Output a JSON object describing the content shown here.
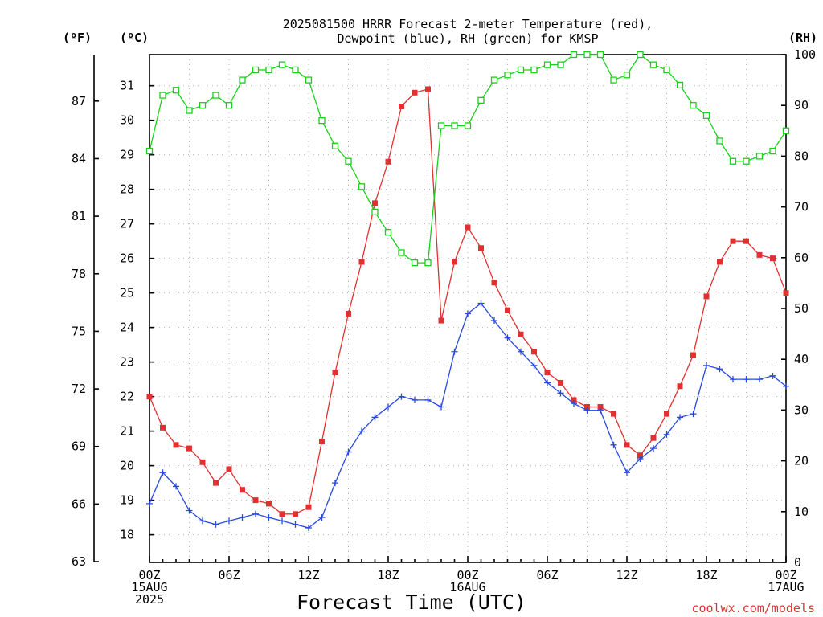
{
  "chart_data": {
    "type": "line",
    "title_lines": [
      "2025081500 HRRR Forecast 2-meter Temperature (red),",
      "Dewpoint (blue), RH (green) for KMSP"
    ],
    "xlabel": "Forecast Time (UTC)",
    "credit": "coolwx.com/models",
    "units": {
      "left_f": "(ºF)",
      "left_c": "(ºC)",
      "right": "(RH)"
    },
    "x_ticks": [
      {
        "hour": 0,
        "lines": [
          "00Z",
          "15AUG",
          "2025"
        ]
      },
      {
        "hour": 6,
        "lines": [
          "06Z"
        ]
      },
      {
        "hour": 12,
        "lines": [
          "12Z"
        ]
      },
      {
        "hour": 18,
        "lines": [
          "18Z"
        ]
      },
      {
        "hour": 24,
        "lines": [
          "00Z",
          "16AUG"
        ]
      },
      {
        "hour": 30,
        "lines": [
          "06Z"
        ]
      },
      {
        "hour": 36,
        "lines": [
          "12Z"
        ]
      },
      {
        "hour": 42,
        "lines": [
          "18Z"
        ]
      },
      {
        "hour": 48,
        "lines": [
          "00Z",
          "17AUG"
        ]
      }
    ],
    "xlim": [
      0,
      48
    ],
    "ylim_c": [
      17.2,
      31.9
    ],
    "ylim_rh": [
      0,
      100
    ],
    "y_ticks_c": [
      "18",
      "19",
      "20",
      "21",
      "22",
      "23",
      "24",
      "25",
      "26",
      "27",
      "28",
      "29",
      "30",
      "31"
    ],
    "y_ticks_f": [
      "63",
      "66",
      "69",
      "72",
      "75",
      "78",
      "81",
      "84",
      "87"
    ],
    "y_ticks_rh": [
      "0",
      "10",
      "20",
      "30",
      "40",
      "50",
      "60",
      "70",
      "80",
      "90",
      "100"
    ],
    "series": [
      {
        "name": "Temperature",
        "color": "#e03030",
        "marker": "filled-square",
        "scale": "celsius",
        "values": [
          22.0,
          21.1,
          20.6,
          20.5,
          20.1,
          19.5,
          19.9,
          19.3,
          19.0,
          18.9,
          18.6,
          18.6,
          18.8,
          20.7,
          22.7,
          24.4,
          25.9,
          27.6,
          28.8,
          30.4,
          30.8,
          30.9,
          24.2,
          25.9,
          26.9,
          26.3,
          25.3,
          24.5,
          23.8,
          23.3,
          22.7,
          22.4,
          21.9,
          21.7,
          21.7,
          21.5,
          20.6,
          20.3,
          20.8,
          21.5,
          22.3,
          23.2,
          24.9,
          25.9,
          26.5,
          26.5,
          26.1,
          26.0,
          25.0
        ]
      },
      {
        "name": "Dewpoint",
        "color": "#2848e0",
        "marker": "plus",
        "scale": "celsius",
        "values": [
          18.9,
          19.8,
          19.4,
          18.7,
          18.4,
          18.3,
          18.4,
          18.5,
          18.6,
          18.5,
          18.4,
          18.3,
          18.2,
          18.5,
          19.5,
          20.4,
          21.0,
          21.4,
          21.7,
          22.0,
          21.9,
          21.9,
          21.7,
          23.3,
          24.4,
          24.7,
          24.2,
          23.7,
          23.3,
          22.9,
          22.4,
          22.1,
          21.8,
          21.6,
          21.6,
          20.6,
          19.8,
          20.2,
          20.5,
          20.9,
          21.4,
          21.5,
          22.9,
          22.8,
          22.5,
          22.5,
          22.5,
          22.6,
          22.3
        ]
      },
      {
        "name": "RH",
        "color": "#18d018",
        "marker": "open-square",
        "scale": "rh",
        "values": [
          81,
          92,
          93,
          89,
          90,
          92,
          90,
          95,
          97,
          97,
          98,
          97,
          95,
          87,
          82,
          79,
          74,
          69,
          65,
          61,
          59,
          59,
          86,
          86,
          86,
          91,
          95,
          96,
          97,
          97,
          98,
          98,
          100,
          100,
          100,
          95,
          96,
          100,
          98,
          97,
          94,
          90,
          88,
          83,
          79,
          79,
          80,
          81,
          85
        ]
      }
    ]
  }
}
